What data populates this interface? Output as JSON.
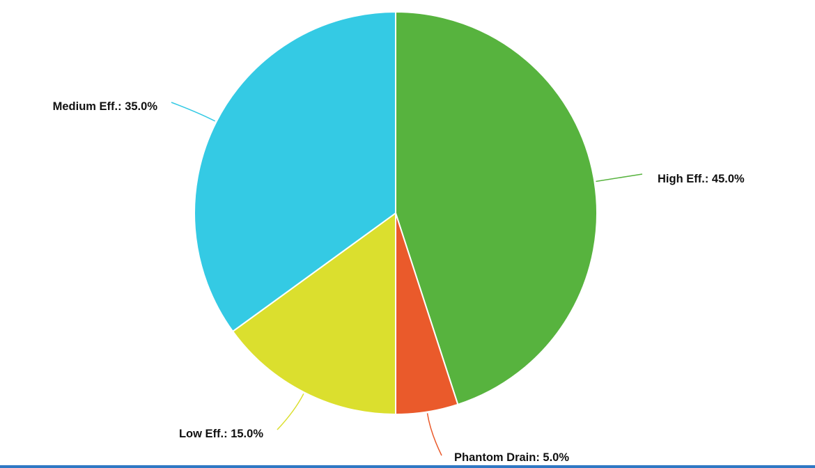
{
  "chart_data": {
    "type": "pie",
    "start_angle": "12 o'clock",
    "direction": "clockwise",
    "slices": [
      {
        "label": "High Eff.",
        "value": 45.0,
        "display": "High Eff.: 45.0%",
        "color": "#57b33e"
      },
      {
        "label": "Phantom Drain",
        "value": 5.0,
        "display": "Phantom Drain: 5.0%",
        "color": "#ea5a2b"
      },
      {
        "label": "Low Eff.",
        "value": 15.0,
        "display": "Low Eff.: 15.0%",
        "color": "#dbdf2e"
      },
      {
        "label": "Medium Eff.",
        "value": 35.0,
        "display": "Medium Eff.: 35.0%",
        "color": "#34cae4"
      }
    ],
    "slice_border_color": "#ffffff",
    "accent_rule_color": "#2f78c4"
  }
}
